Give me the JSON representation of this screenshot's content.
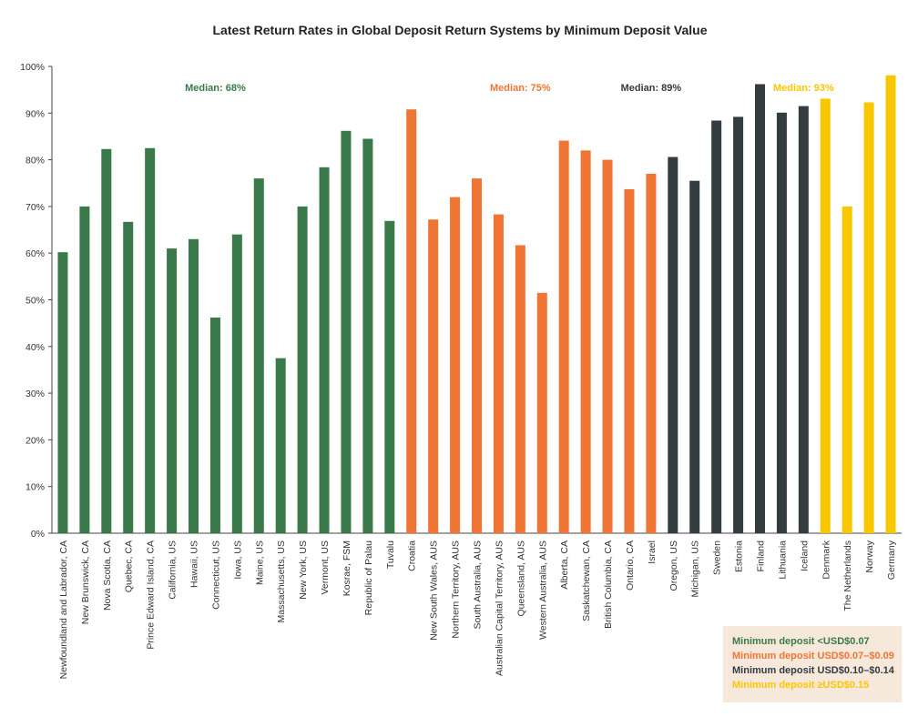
{
  "chart_data": {
    "type": "bar",
    "title": "Latest Return Rates in Global Deposit Return Systems by Minimum Deposit Value",
    "xlabel": "",
    "ylabel": "",
    "ylim": [
      0,
      100
    ],
    "yticks": [
      "0%",
      "10%",
      "20%",
      "30%",
      "40%",
      "50%",
      "60%",
      "70%",
      "80%",
      "90%",
      "100%"
    ],
    "grid": false,
    "legend_position": "bottom-right",
    "colors": {
      "green": "#3a7a4a",
      "orange": "#ef7535",
      "dark": "#333c3f",
      "yellow": "#f9c700"
    },
    "categories": [
      "Newfoundland and Labrador, CA",
      "New Brunswick, CA",
      "Nova Scotia, CA",
      "Quebec, CA",
      "Prince Edward Island, CA",
      "California, US",
      "Hawaii, US",
      "Connecticut, US",
      "Iowa, US",
      "Maine, US",
      "Massachusetts, US",
      "New York, US",
      "Vermont, US",
      "Kosrae, FSM",
      "Republic of Palau",
      "Tuvalu",
      "Croatia",
      "New South Wales, AUS",
      "Northern Territory, AUS",
      "South Australia, AUS",
      "Australian Capital Territory, AUS",
      "Queensland, AUS",
      "Western Australia, AUS",
      "Alberta, CA",
      "Saskatchewan, CA",
      "British Columbia, CA",
      "Ontario, CA",
      "Israel",
      "Oregon, US",
      "Michigan, US",
      "Sweden",
      "Estonia",
      "Finland",
      "Lithuania",
      "Iceland",
      "Denmark",
      "The Netherlands",
      "Norway",
      "Germany"
    ],
    "values": [
      60.2,
      70,
      82.3,
      66.7,
      82.5,
      61,
      63,
      46.2,
      64,
      76,
      37.5,
      70,
      78.4,
      86.2,
      84.5,
      66.9,
      90.8,
      67.2,
      72,
      76,
      68.3,
      61.7,
      51.5,
      84.1,
      82,
      80,
      73.7,
      77,
      80.6,
      75.5,
      88.4,
      89.2,
      96.2,
      90.1,
      91.5,
      93.1,
      70,
      92.3,
      98.1
    ],
    "groups": [
      "green",
      "green",
      "green",
      "green",
      "green",
      "green",
      "green",
      "green",
      "green",
      "green",
      "green",
      "green",
      "green",
      "green",
      "green",
      "green",
      "orange",
      "orange",
      "orange",
      "orange",
      "orange",
      "orange",
      "orange",
      "orange",
      "orange",
      "orange",
      "orange",
      "orange",
      "dark",
      "dark",
      "dark",
      "dark",
      "dark",
      "dark",
      "dark",
      "yellow",
      "yellow",
      "yellow",
      "yellow"
    ],
    "medians": [
      {
        "label": "Median: 68%",
        "group": "green",
        "anchor_index": 7
      },
      {
        "label": "Median: 75%",
        "group": "orange",
        "anchor_index": 21
      },
      {
        "label": "Median: 89%",
        "group": "dark",
        "anchor_index": 27
      },
      {
        "label": "Median: 93%",
        "group": "yellow",
        "anchor_index": 34
      }
    ],
    "legend": [
      {
        "label": "Minimum deposit <USD$0.07",
        "group": "green"
      },
      {
        "label": "Minimum deposit USD$0.07–$0.09",
        "group": "orange"
      },
      {
        "label": "Minimum deposit USD$0.10–$0.14",
        "group": "dark"
      },
      {
        "label": "Minimum deposit ≥USD$0.15",
        "group": "yellow"
      }
    ]
  }
}
